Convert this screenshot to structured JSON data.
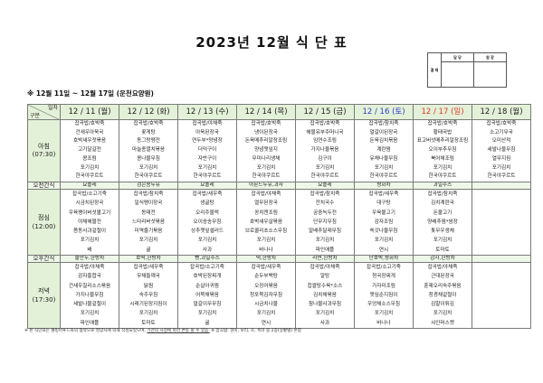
{
  "title": "2023년 12월 식 단 표",
  "approval": {
    "label": "결 재",
    "col1": "담 당",
    "col2": "원 장"
  },
  "subtitle": "※ 12월 11일 ~ 12월 17일 (운천요양원)",
  "header": {
    "corner_top": "일자",
    "corner_bottom": "구분"
  },
  "colors": {
    "header_bg": "#e3f1d8",
    "saturday": "#2e3fc4",
    "sunday": "#e03a2a",
    "weekday": "#222222"
  },
  "days": [
    {
      "date": "12 / 11 (월)",
      "kind": "weekday"
    },
    {
      "date": "12 / 12 (화)",
      "kind": "weekday"
    },
    {
      "date": "12 / 13 (수)",
      "kind": "weekday"
    },
    {
      "date": "12 / 14 (목)",
      "kind": "weekday"
    },
    {
      "date": "12 / 15 (금)",
      "kind": "weekday"
    },
    {
      "date": "12 / 16 (토)",
      "kind": "saturday"
    },
    {
      "date": "12 / 17 (일)",
      "kind": "sunday"
    },
    {
      "date": "12 / 18 (월)",
      "kind": "weekday"
    }
  ],
  "meals": [
    {
      "key": "bf",
      "label": "아침",
      "time": "(07:30)",
      "items": [
        [
          "잡곡밥/호박죽",
          "건새우아욱국",
          "호박새우젓볶음",
          "고기달걀전",
          "콩조림",
          "포기김치",
          "한국야쿠르트"
        ],
        [
          "잡곡밥/호박죽",
          "꽃게탕",
          "동그랑땡전",
          "마늘종멸치볶음",
          "콩나물무침",
          "포기김치",
          "한국야쿠르트"
        ],
        [
          "잡곡밥/야채죽",
          "아욱된장국",
          "연두부*양념장",
          "더덕구이",
          "자반구이",
          "포기김치",
          "한국야쿠르트"
        ],
        [
          "잡곡밥/호박죽",
          "냉이된장국",
          "돈육메추리알장조림",
          "양념깻잎지",
          "무미나리생채",
          "포기김치",
          "한국야쿠르트"
        ],
        [
          "잡곡밥/호박죽",
          "해물유부주머니국",
          "임연수조림",
          "가지나물볶음",
          "김구이",
          "포기김치",
          "한국야쿠르트"
        ],
        [
          "잡곡밥/참치죽",
          "얼갈이된장국",
          "돈육김치볶음",
          "계란찜",
          "유채나물무침",
          "포기김치",
          "한국야쿠르트"
        ],
        [
          "잡곡밥/호박죽",
          "황태국밥",
          "표고버섯메추리알장조림",
          "오이부추무침",
          "북어채조림",
          "포기김치",
          "한국야쿠르트"
        ],
        [
          "잡곡밥/호박죽",
          "소고기무국",
          "오미산적",
          "세발나물무침",
          "열무지짐",
          "포기김치",
          "한국야쿠르트"
        ]
      ]
    },
    {
      "key": "snack",
      "label": "오전간식",
      "time": "",
      "items": [
        [
          "요플레"
        ],
        [
          "검은콩두유"
        ],
        [
          "요플레"
        ],
        [
          "아몬드두유,과자"
        ],
        [
          "요플레"
        ],
        [
          "쌍화차"
        ],
        [
          "과일주스"
        ],
        [
          ""
        ]
      ]
    },
    {
      "key": "ln",
      "label": "점심",
      "time": "(12:00)",
      "items": [
        [
          "잡곡밥/소고기죽",
          "시금치된장국",
          "우육팽이버섯불고기",
          "야채해물전",
          "봄동사과겉절이",
          "포기김치",
          "배"
        ],
        [
          "잡곡밥/참치죽",
          "일식팽이장국",
          "동태전",
          "느타리버섯볶음",
          "미역줄기볶음",
          "포기김치",
          "귤"
        ],
        [
          "잡곡밥/새우죽",
          "생굴탕",
          "오리주물럭",
          "오이송송무침",
          "상추깻잎샐러드",
          "포기김치",
          "사과"
        ],
        [
          "잡곡밥/야채죽",
          "열무된장국",
          "꽁치캔조림",
          "호박새우살볶음",
          "브로콜리초소스무침",
          "포기김치",
          "바나나"
        ],
        [
          "잡곡밥/참치죽",
          "잔치국수",
          "궁중녹두전",
          "단무지무침",
          "알배추달래무침",
          "포기김치",
          "파인애플"
        ],
        [
          "잡곡밥/새우죽",
          "대구탕",
          "우육불고기",
          "감자조림",
          "쑥갓나물무침",
          "포기김치",
          "연시"
        ],
        [
          "잡곡밥/참치죽",
          "김치계란국",
          "돈불고기",
          "양배추찜*쌈장",
          "톳무우생채",
          "포기김치",
          "토마토"
        ],
        [
          "",
          "",
          "",
          "",
          "",
          "",
          ""
        ]
      ]
    },
    {
      "key": "snack",
      "label": "오후간식",
      "time": "",
      "items": [
        [
          "물만두,한방차"
        ],
        [
          "호떡,한방차"
        ],
        [
          "빵,과일주스"
        ],
        [
          "떡,한방차"
        ],
        [
          "라면,한방차"
        ],
        [
          "단호박,쌍화차"
        ],
        [
          "감자,한방차"
        ],
        [
          ""
        ]
      ]
    },
    {
      "key": "dn",
      "label": "저녁",
      "time": "(17:30)",
      "items": [
        [
          "잡곡밥/야채죽",
          "감자홍합국",
          "건새우칠리소스볶음",
          "가지나물무침",
          "세발나물겉절이",
          "포기김치",
          "파인애플"
        ],
        [
          "잡곡밥/새우죽",
          "무채들깨국",
          "닭찜",
          "숙주무침",
          "시래기된장지짐이",
          "포기김치",
          "토마토"
        ],
        [
          "잡곡밥/소고기죽",
          "호박된장찌개",
          "순살아귀찜",
          "어묵채볶음",
          "얼갈이무무침",
          "포기김치",
          "귤"
        ],
        [
          "잡곡밥/새우죽",
          "순두부백탕",
          "오징어볶음",
          "청포묵김자무침",
          "시금치나물",
          "포기김치",
          "연시"
        ],
        [
          "잡곡밥/야채죽",
          "알탕",
          "찹쌀탕수육*소스",
          "김치채볶음",
          "참나물사과무침",
          "포기김치",
          "사과"
        ],
        [
          "잡곡밥/소고기죽",
          "청국장찌개",
          "가자미조림",
          "깻잎순지짐이",
          "우엉채소스무침",
          "포기김치",
          "바나나"
        ],
        [
          "잡곡밥/야채죽",
          "근대된장국",
          "훈제오리숙주볶음",
          "청경채겉절이",
          "김말이튀김",
          "포기김치",
          "샤인머스켓"
        ],
        [
          "",
          "",
          "",
          "",
          "",
          "",
          ""
        ]
      ]
    }
  ],
  "footnote": {
    "part1": "※ 본 식단표는 웰빙아푸드와의 협약으로 영양사에 의해 작성되었으며, ",
    "part2": "기관의 사정에 따라 변동 될 수 있음.",
    "part3": " ※ 잡곡밥: 현미, 보리, 조, 흑미 중 2종(상황별) 혼합"
  }
}
